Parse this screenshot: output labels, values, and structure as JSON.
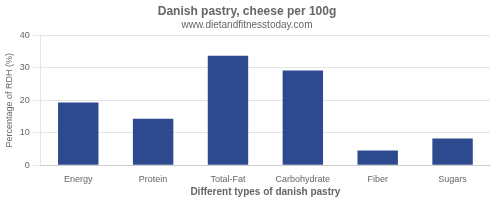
{
  "chart_data": {
    "type": "bar",
    "title": "Danish pastry, cheese per 100g",
    "subtitle": "www.dietandfitnesstoday.com",
    "xlabel": "Different types of danish pastry",
    "ylabel": "Percentage of RDH (%)",
    "categories": [
      "Energy",
      "Protein",
      "Total-Fat",
      "Carbohydrate",
      "Fiber",
      "Sugars"
    ],
    "values": [
      19.3,
      14.3,
      33.7,
      29.2,
      4.5,
      8.2
    ],
    "color": "#2e4a8e",
    "ylim": [
      0,
      40
    ],
    "yticks": [
      0,
      10,
      20,
      30,
      40
    ],
    "grid": true
  }
}
